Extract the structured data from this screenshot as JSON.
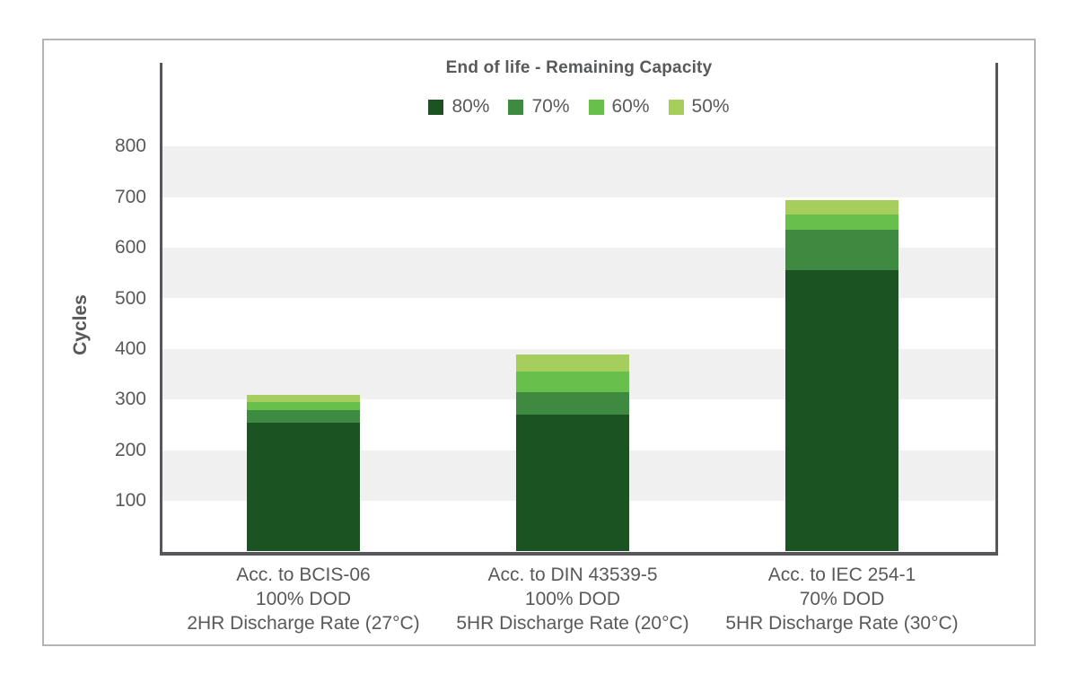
{
  "chart_data": {
    "type": "bar",
    "subtype": "stacked",
    "title": "End of life - Remaining Capacity",
    "ylabel": "Cycles",
    "xlabel": "",
    "y_ticks": [
      100,
      200,
      300,
      400,
      500,
      600,
      700,
      800
    ],
    "ylim": [
      0,
      965
    ],
    "grid": "alternating horizontal gray bands between 100-cycle gridlines (100-200, 300-400, 500-600, 700-800 shaded)",
    "legend_position": "top-center",
    "legend": [
      "80%",
      "70%",
      "60%",
      "50%"
    ],
    "categories": [
      [
        "Acc. to BCIS-06",
        "100% DOD",
        "2HR Discharge Rate (27°C)"
      ],
      [
        "Acc. to DIN 43539-5",
        "100% DOD",
        "5HR Discharge Rate (20°C)"
      ],
      [
        "Acc. to IEC 254-1",
        "70% DOD",
        "5HR Discharge Rate (30°C)"
      ]
    ],
    "series": [
      {
        "name": "80%",
        "color": "#1b5422",
        "values": [
          255,
          270,
          555
        ]
      },
      {
        "name": "70%",
        "color": "#3e8a41",
        "values": [
          25,
          45,
          80
        ]
      },
      {
        "name": "60%",
        "color": "#69bf4b",
        "values": [
          15,
          40,
          30
        ]
      },
      {
        "name": "50%",
        "color": "#a5ce5c",
        "values": [
          15,
          35,
          30
        ]
      }
    ],
    "stack_totals": [
      310,
      390,
      695
    ]
  },
  "palette": {
    "text": "#58595b",
    "axis": "#55575c",
    "band": "#f0f0f1",
    "panel_border": "#b3b4b6"
  }
}
